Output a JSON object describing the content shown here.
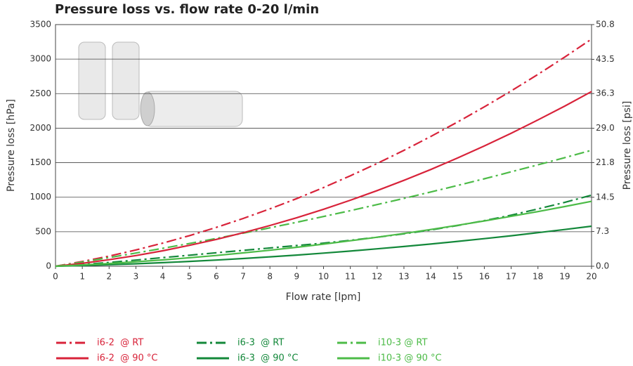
{
  "chart_data": {
    "type": "line",
    "title": "Pressure loss vs. flow rate 0-20 l/min",
    "x_label": "Flow rate [lpm]",
    "y_label": "Pressure loss [hPa]",
    "y2_label": "Pressure loss [psi]",
    "x": [
      0,
      1,
      2,
      3,
      4,
      5,
      6,
      7,
      8,
      9,
      10,
      11,
      12,
      13,
      14,
      15,
      16,
      17,
      18,
      19,
      20
    ],
    "xlim": [
      0,
      20
    ],
    "xticks": [
      0,
      1,
      2,
      3,
      4,
      5,
      6,
      7,
      8,
      9,
      10,
      11,
      12,
      13,
      14,
      15,
      16,
      17,
      18,
      19,
      20
    ],
    "ylim": [
      0,
      3500
    ],
    "yticks": [
      0,
      500,
      1000,
      1500,
      2000,
      2500,
      3000,
      3500
    ],
    "y2lim": [
      0,
      50.8
    ],
    "y2ticks": [
      {
        "value": 0,
        "label": "0.0"
      },
      7.3,
      14.5,
      21.8,
      {
        "value": 29,
        "label": "29.0"
      },
      36.3,
      43.5,
      50.8
    ],
    "grid": true,
    "legend": "bottom",
    "series": [
      {
        "name": "i6-2  @ RT",
        "color": "#d8233a",
        "line_style": "dash-dot",
        "values": [
          0,
          69,
          147,
          236,
          335,
          444,
          563,
          692,
          831,
          980,
          1140,
          1310,
          1489,
          1679,
          1879,
          2089,
          2309,
          2539,
          2779,
          3030,
          3290
        ]
      },
      {
        "name": "i6-3  @ RT",
        "color": "#13883a",
        "line_style": "dash-dot",
        "values": [
          0,
          25,
          55,
          90,
          125,
          160,
          195,
          230,
          265,
          300,
          335,
          375,
          420,
          470,
          525,
          590,
          660,
          740,
          830,
          925,
          1030
        ]
      },
      {
        "name": "i10-3 @ RT",
        "color": "#4cbb47",
        "line_style": "dash-dot",
        "values": [
          0,
          61,
          125,
          191,
          259,
          330,
          403,
          479,
          557,
          637,
          720,
          805,
          893,
          983,
          1075,
          1170,
          1267,
          1367,
          1469,
          1573,
          1680
        ]
      },
      {
        "name": "i6-2  @ 90 °C",
        "color": "#d8233a",
        "line_style": "solid",
        "values": [
          0,
          43,
          95,
          155,
          224,
          303,
          389,
          485,
          590,
          703,
          825,
          956,
          1096,
          1244,
          1401,
          1568,
          1742,
          1926,
          2119,
          2320,
          2530
        ]
      },
      {
        "name": "i6-3  @ 90 °C",
        "color": "#13883a",
        "line_style": "solid",
        "values": [
          0,
          10,
          22,
          36,
          52,
          70,
          90,
          112,
          136,
          162,
          190,
          220,
          252,
          286,
          322,
          360,
          400,
          442,
          486,
          532,
          580
        ]
      },
      {
        "name": "i10-3 @ 90 °C",
        "color": "#4cbb47",
        "line_style": "solid",
        "values": [
          0,
          19,
          40,
          65,
          92,
          123,
          156,
          193,
          232,
          275,
          320,
          369,
          420,
          475,
          532,
          593,
          656,
          723,
          792,
          865,
          940
        ]
      }
    ]
  }
}
